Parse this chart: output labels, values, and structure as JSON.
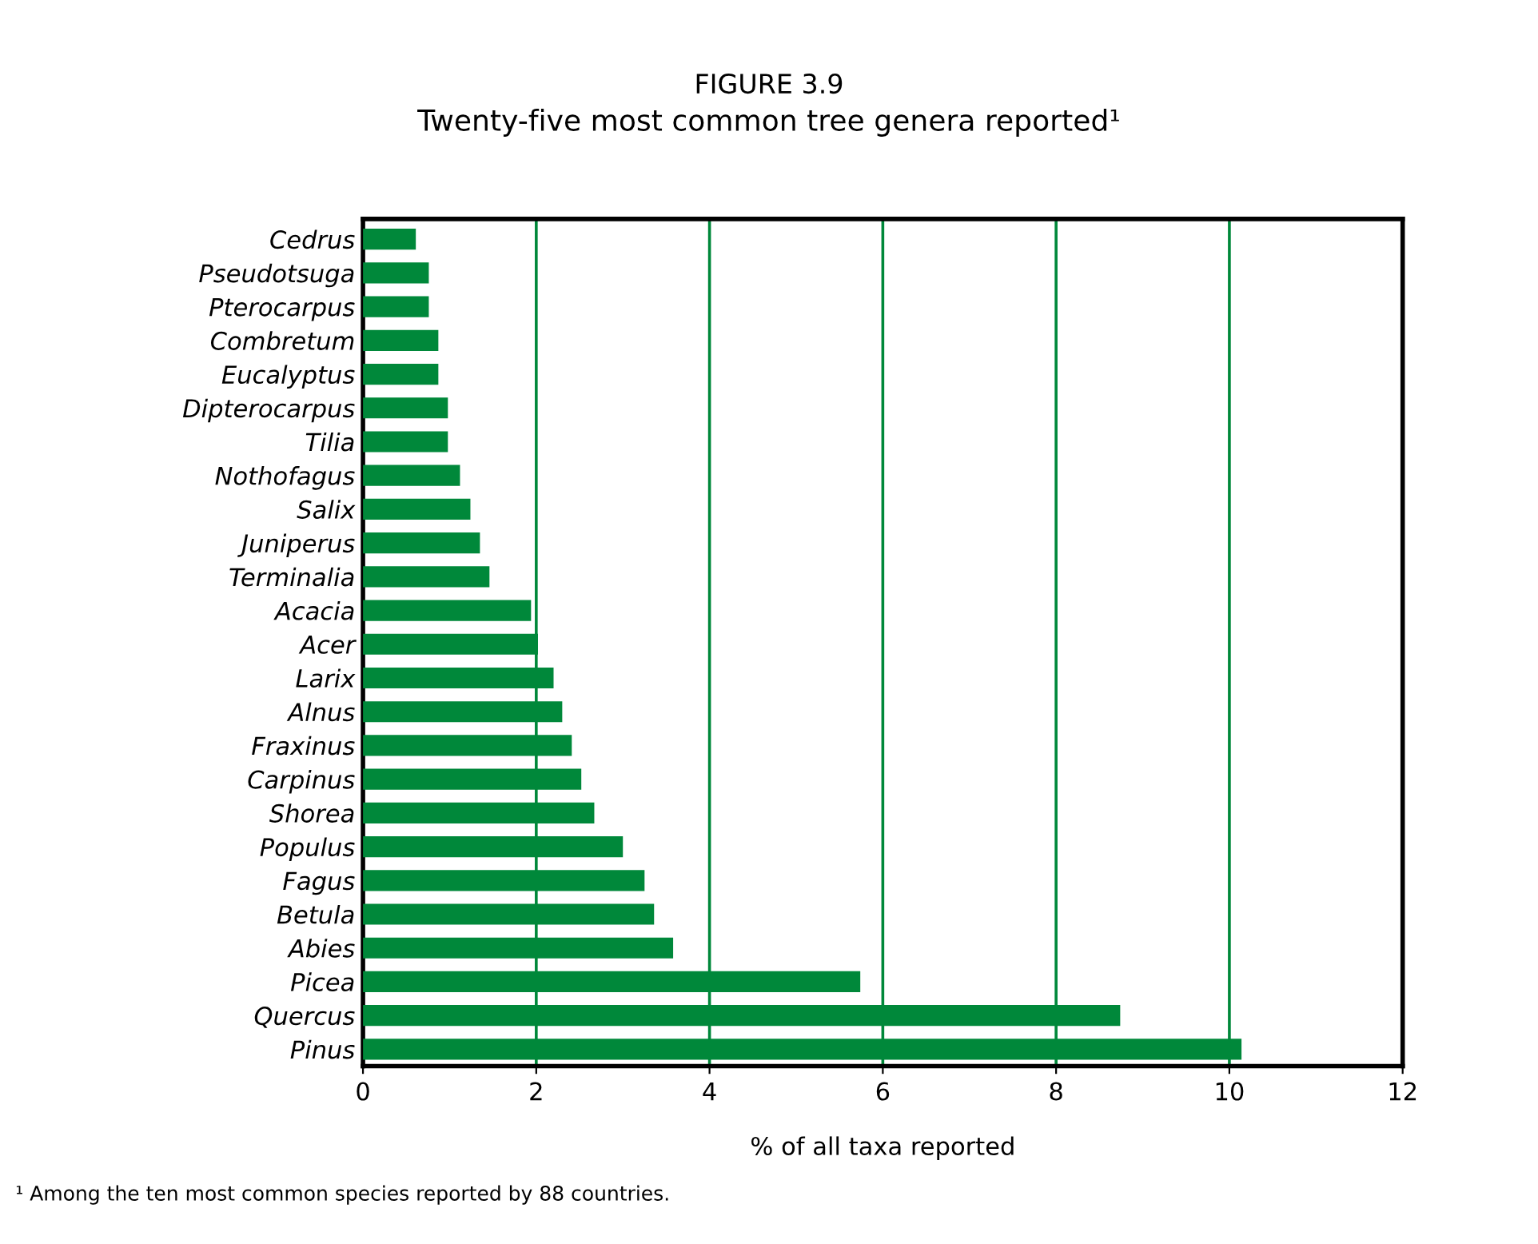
{
  "chart_data": {
    "type": "bar",
    "orientation": "horizontal",
    "title": "FIGURE 3.9",
    "subtitle": "Twenty-five most common tree genera reported¹",
    "xlabel": "% of all taxa reported",
    "categories": [
      "Cedrus",
      "Pseudotsuga",
      "Pterocarpus",
      "Combretum",
      "Eucalyptus",
      "Dipterocarpus",
      "Tilia",
      "Nothofagus",
      "Salix",
      "Juniperus",
      "Terminalia",
      "Acacia",
      "Acer",
      "Larix",
      "Alnus",
      "Fraxinus",
      "Carpinus",
      "Shorea",
      "Populus",
      "Fagus",
      "Betula",
      "Abies",
      "Picea",
      "Quercus",
      "Pinus"
    ],
    "values": [
      0.61,
      0.76,
      0.76,
      0.87,
      0.87,
      0.98,
      0.98,
      1.12,
      1.24,
      1.35,
      1.46,
      1.94,
      2.02,
      2.2,
      2.3,
      2.41,
      2.52,
      2.67,
      3.0,
      3.25,
      3.36,
      3.58,
      5.74,
      8.74,
      10.14
    ],
    "color": "#00883a",
    "xlim": [
      0,
      12
    ],
    "xticks": [
      0,
      2,
      4,
      6,
      8,
      10,
      12
    ],
    "grid": "x",
    "annotations": [
      "¹ Among the ten most common species reported by 88 countries."
    ]
  }
}
